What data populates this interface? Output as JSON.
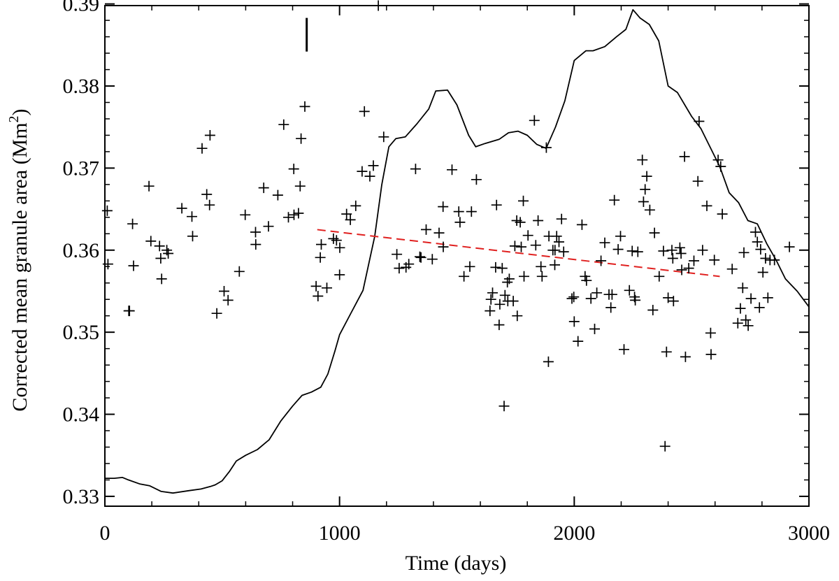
{
  "chart_data": {
    "type": "scatter",
    "title": "",
    "xlabel": "Time (days)",
    "ylabel_main": "Corrected mean granule area (Mm",
    "ylabel_sup": "2",
    "ylabel_tail": ")",
    "xlim": [
      0,
      3000
    ],
    "ylim": [
      0.3288,
      0.3898
    ],
    "grid": false,
    "x_ticks": [
      0,
      1000,
      2000,
      3000
    ],
    "x_tick_labels": [
      "0",
      "1000",
      "2000",
      "3000"
    ],
    "y_ticks": [
      0.33,
      0.34,
      0.35,
      0.36,
      0.37,
      0.38,
      0.39
    ],
    "y_tick_labels": [
      "0.33",
      "0.34",
      "0.35",
      "0.36",
      "0.37",
      "0.38",
      "0.39"
    ],
    "series": [
      {
        "name": "Corrected mean granule area",
        "style": "plus-marker",
        "color": "#000000",
        "points": [
          [
            10,
            0.3648
          ],
          [
            13,
            0.3583
          ],
          [
            102,
            0.3526
          ],
          [
            105,
            0.3526
          ],
          [
            118,
            0.3632
          ],
          [
            122,
            0.3581
          ],
          [
            188,
            0.3678
          ],
          [
            196,
            0.3611
          ],
          [
            233,
            0.3605
          ],
          [
            242,
            0.3565
          ],
          [
            238,
            0.359
          ],
          [
            264,
            0.36
          ],
          [
            270,
            0.3596
          ],
          [
            328,
            0.3651
          ],
          [
            371,
            0.3641
          ],
          [
            374,
            0.3617
          ],
          [
            414,
            0.3724
          ],
          [
            434,
            0.3668
          ],
          [
            448,
            0.374
          ],
          [
            446,
            0.3655
          ],
          [
            477,
            0.3523
          ],
          [
            508,
            0.355
          ],
          [
            525,
            0.3539
          ],
          [
            573,
            0.3574
          ],
          [
            598,
            0.3643
          ],
          [
            642,
            0.3622
          ],
          [
            643,
            0.3607
          ],
          [
            677,
            0.3676
          ],
          [
            697,
            0.3629
          ],
          [
            737,
            0.3667
          ],
          [
            762,
            0.3753
          ],
          [
            782,
            0.364
          ],
          [
            805,
            0.3699
          ],
          [
            806,
            0.3643
          ],
          [
            825,
            0.3645
          ],
          [
            832,
            0.3678
          ],
          [
            836,
            0.3736
          ],
          [
            852,
            0.3775
          ],
          [
            900,
            0.3556
          ],
          [
            908,
            0.3544
          ],
          [
            918,
            0.3591
          ],
          [
            922,
            0.3607
          ],
          [
            946,
            0.3554
          ],
          [
            974,
            0.3614
          ],
          [
            987,
            0.3612
          ],
          [
            1000,
            0.357
          ],
          [
            1001,
            0.3603
          ],
          [
            1030,
            0.3644
          ],
          [
            1046,
            0.3637
          ],
          [
            1069,
            0.3654
          ],
          [
            1096,
            0.3696
          ],
          [
            1106,
            0.3769
          ],
          [
            1129,
            0.369
          ],
          [
            1144,
            0.3703
          ],
          [
            1165,
            0.3898
          ],
          [
            1188,
            0.3738
          ],
          [
            1244,
            0.3595
          ],
          [
            1254,
            0.3578
          ],
          [
            1283,
            0.3579
          ],
          [
            1295,
            0.3583
          ],
          [
            1324,
            0.3699
          ],
          [
            1342,
            0.3592
          ],
          [
            1347,
            0.3591
          ],
          [
            1369,
            0.3625
          ],
          [
            1395,
            0.3589
          ],
          [
            1424,
            0.3621
          ],
          [
            1441,
            0.3653
          ],
          [
            1442,
            0.3604
          ],
          [
            1479,
            0.3698
          ],
          [
            1508,
            0.3647
          ],
          [
            1513,
            0.3634
          ],
          [
            1530,
            0.3568
          ],
          [
            1555,
            0.358
          ],
          [
            1562,
            0.3647
          ],
          [
            1583,
            0.3686
          ],
          [
            1641,
            0.3526
          ],
          [
            1645,
            0.354
          ],
          [
            1652,
            0.3548
          ],
          [
            1665,
            0.3579
          ],
          [
            1669,
            0.3655
          ],
          [
            1680,
            0.3509
          ],
          [
            1683,
            0.3534
          ],
          [
            1693,
            0.3578
          ],
          [
            1701,
            0.341
          ],
          [
            1705,
            0.3545
          ],
          [
            1715,
            0.3561
          ],
          [
            1717,
            0.3538
          ],
          [
            1723,
            0.3565
          ],
          [
            1740,
            0.3538
          ],
          [
            1747,
            0.3605
          ],
          [
            1755,
            0.3636
          ],
          [
            1757,
            0.352
          ],
          [
            1770,
            0.3634
          ],
          [
            1774,
            0.3604
          ],
          [
            1783,
            0.366
          ],
          [
            1786,
            0.3568
          ],
          [
            1803,
            0.3618
          ],
          [
            1830,
            0.3758
          ],
          [
            1836,
            0.3606
          ],
          [
            1846,
            0.3636
          ],
          [
            1858,
            0.358
          ],
          [
            1863,
            0.3568
          ],
          [
            1881,
            0.3725
          ],
          [
            1890,
            0.3464
          ],
          [
            1892,
            0.3617
          ],
          [
            1909,
            0.36
          ],
          [
            1917,
            0.3582
          ],
          [
            1918,
            0.36
          ],
          [
            1925,
            0.3617
          ],
          [
            1935,
            0.361
          ],
          [
            1946,
            0.3638
          ],
          [
            1955,
            0.3598
          ],
          [
            1990,
            0.3541
          ],
          [
            1998,
            0.3543
          ],
          [
            2000,
            0.3513
          ],
          [
            2016,
            0.3489
          ],
          [
            2033,
            0.3631
          ],
          [
            2046,
            0.3568
          ],
          [
            2052,
            0.3563
          ],
          [
            2071,
            0.3541
          ],
          [
            2087,
            0.3504
          ],
          [
            2096,
            0.3548
          ],
          [
            2114,
            0.3587
          ],
          [
            2130,
            0.3609
          ],
          [
            2148,
            0.3546
          ],
          [
            2156,
            0.353
          ],
          [
            2161,
            0.3546
          ],
          [
            2171,
            0.3661
          ],
          [
            2187,
            0.3601
          ],
          [
            2197,
            0.3617
          ],
          [
            2212,
            0.3479
          ],
          [
            2235,
            0.3551
          ],
          [
            2247,
            0.3599
          ],
          [
            2257,
            0.3543
          ],
          [
            2260,
            0.3539
          ],
          [
            2271,
            0.3598
          ],
          [
            2290,
            0.371
          ],
          [
            2295,
            0.3659
          ],
          [
            2302,
            0.3674
          ],
          [
            2309,
            0.369
          ],
          [
            2322,
            0.3649
          ],
          [
            2335,
            0.3527
          ],
          [
            2342,
            0.3621
          ],
          [
            2362,
            0.3568
          ],
          [
            2380,
            0.3599
          ],
          [
            2387,
            0.3361
          ],
          [
            2393,
            0.3476
          ],
          [
            2400,
            0.3542
          ],
          [
            2416,
            0.36
          ],
          [
            2420,
            0.359
          ],
          [
            2423,
            0.3538
          ],
          [
            2450,
            0.3603
          ],
          [
            2455,
            0.3596
          ],
          [
            2458,
            0.3576
          ],
          [
            2470,
            0.3714
          ],
          [
            2474,
            0.347
          ],
          [
            2488,
            0.3578
          ],
          [
            2510,
            0.3587
          ],
          [
            2527,
            0.3684
          ],
          [
            2532,
            0.3757
          ],
          [
            2547,
            0.36
          ],
          [
            2565,
            0.3654
          ],
          [
            2581,
            0.3499
          ],
          [
            2583,
            0.3473
          ],
          [
            2597,
            0.3588
          ],
          [
            2613,
            0.371
          ],
          [
            2624,
            0.3702
          ],
          [
            2631,
            0.3644
          ],
          [
            2673,
            0.3577
          ],
          [
            2697,
            0.3511
          ],
          [
            2708,
            0.3529
          ],
          [
            2718,
            0.3554
          ],
          [
            2723,
            0.3597
          ],
          [
            2731,
            0.3515
          ],
          [
            2741,
            0.3508
          ],
          [
            2753,
            0.3541
          ],
          [
            2772,
            0.3622
          ],
          [
            2780,
            0.361
          ],
          [
            2789,
            0.353
          ],
          [
            2794,
            0.3601
          ],
          [
            2804,
            0.3573
          ],
          [
            2815,
            0.359
          ],
          [
            2825,
            0.3542
          ],
          [
            2834,
            0.3588
          ],
          [
            2853,
            0.3588
          ],
          [
            2917,
            0.3604
          ]
        ]
      },
      {
        "name": "Smoothed activity curve",
        "style": "solid-line",
        "color": "#000000",
        "points": [
          [
            0,
            0.3322
          ],
          [
            40,
            0.3322
          ],
          [
            75,
            0.3323
          ],
          [
            100,
            0.332
          ],
          [
            150,
            0.3315
          ],
          [
            190,
            0.3313
          ],
          [
            240,
            0.3306
          ],
          [
            290,
            0.3304
          ],
          [
            360,
            0.3307
          ],
          [
            410,
            0.3309
          ],
          [
            450,
            0.3312
          ],
          [
            470,
            0.3314
          ],
          [
            500,
            0.3319
          ],
          [
            530,
            0.333
          ],
          [
            560,
            0.3343
          ],
          [
            600,
            0.335
          ],
          [
            650,
            0.3357
          ],
          [
            700,
            0.3369
          ],
          [
            750,
            0.3392
          ],
          [
            800,
            0.341
          ],
          [
            840,
            0.3423
          ],
          [
            880,
            0.3427
          ],
          [
            920,
            0.3433
          ],
          [
            950,
            0.3449
          ],
          [
            980,
            0.3477
          ],
          [
            1000,
            0.3497
          ],
          [
            1050,
            0.3524
          ],
          [
            1100,
            0.3551
          ],
          [
            1150,
            0.3617
          ],
          [
            1180,
            0.368
          ],
          [
            1210,
            0.3726
          ],
          [
            1240,
            0.3736
          ],
          [
            1280,
            0.3738
          ],
          [
            1330,
            0.3754
          ],
          [
            1380,
            0.3772
          ],
          [
            1410,
            0.3794
          ],
          [
            1460,
            0.3795
          ],
          [
            1500,
            0.3777
          ],
          [
            1550,
            0.374
          ],
          [
            1580,
            0.3726
          ],
          [
            1620,
            0.373
          ],
          [
            1680,
            0.3735
          ],
          [
            1720,
            0.3743
          ],
          [
            1760,
            0.3745
          ],
          [
            1800,
            0.374
          ],
          [
            1840,
            0.3729
          ],
          [
            1880,
            0.3724
          ],
          [
            1920,
            0.375
          ],
          [
            1960,
            0.3782
          ],
          [
            2000,
            0.3831
          ],
          [
            2050,
            0.3843
          ],
          [
            2080,
            0.3843
          ],
          [
            2130,
            0.3848
          ],
          [
            2180,
            0.386
          ],
          [
            2220,
            0.3869
          ],
          [
            2250,
            0.3893
          ],
          [
            2280,
            0.3883
          ],
          [
            2320,
            0.3875
          ],
          [
            2360,
            0.3855
          ],
          [
            2400,
            0.38
          ],
          [
            2440,
            0.3792
          ],
          [
            2500,
            0.3763
          ],
          [
            2540,
            0.3748
          ],
          [
            2580,
            0.3725
          ],
          [
            2620,
            0.3702
          ],
          [
            2660,
            0.367
          ],
          [
            2700,
            0.3658
          ],
          [
            2740,
            0.3636
          ],
          [
            2780,
            0.3632
          ],
          [
            2820,
            0.3608
          ],
          [
            2860,
            0.3588
          ],
          [
            2900,
            0.3565
          ],
          [
            2950,
            0.355
          ],
          [
            3000,
            0.3531
          ]
        ]
      },
      {
        "name": "Linear trend",
        "style": "dashed-line",
        "color": "#e0201f",
        "points": [
          [
            905,
            0.3625
          ],
          [
            2620,
            0.3568
          ]
        ]
      }
    ],
    "annotations": [
      {
        "type": "vertical-marker",
        "x": 860,
        "y_from": 0.3842,
        "y_to": 0.3883
      }
    ]
  }
}
